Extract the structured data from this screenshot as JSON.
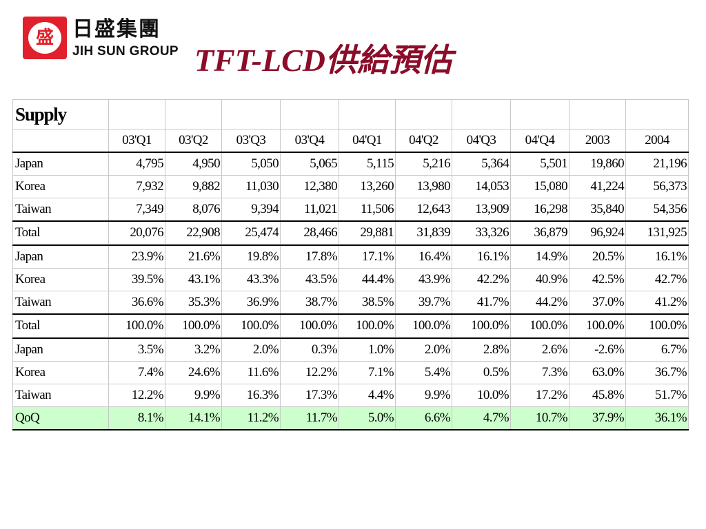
{
  "logo": {
    "glyph": "盛",
    "name_cn": "日盛集團",
    "name_en": "JIH SUN GROUP"
  },
  "title": "TFT-LCD供給預估",
  "table": {
    "caption": "Supply",
    "columns": [
      "03'Q1",
      "03'Q2",
      "03'Q3",
      "03'Q4",
      "04'Q1",
      "04'Q2",
      "04'Q3",
      "04'Q4",
      "2003",
      "2004"
    ],
    "supply_rows": [
      {
        "label": "Japan",
        "values": [
          "4,795",
          "4,950",
          "5,050",
          "5,065",
          "5,115",
          "5,216",
          "5,364",
          "5,501",
          "19,860",
          "21,196"
        ]
      },
      {
        "label": "Korea",
        "values": [
          "7,932",
          "9,882",
          "11,030",
          "12,380",
          "13,260",
          "13,980",
          "14,053",
          "15,080",
          "41,224",
          "56,373"
        ]
      },
      {
        "label": "Taiwan",
        "values": [
          "7,349",
          "8,076",
          "9,394",
          "11,021",
          "11,506",
          "12,643",
          "13,909",
          "16,298",
          "35,840",
          "54,356"
        ]
      },
      {
        "label": "Total",
        "values": [
          "20,076",
          "22,908",
          "25,474",
          "28,466",
          "29,881",
          "31,839",
          "33,326",
          "36,879",
          "96,924",
          "131,925"
        ]
      }
    ],
    "share_rows": [
      {
        "label": "Japan",
        "values": [
          "23.9%",
          "21.6%",
          "19.8%",
          "17.8%",
          "17.1%",
          "16.4%",
          "16.1%",
          "14.9%",
          "20.5%",
          "16.1%"
        ]
      },
      {
        "label": "Korea",
        "values": [
          "39.5%",
          "43.1%",
          "43.3%",
          "43.5%",
          "44.4%",
          "43.9%",
          "42.2%",
          "40.9%",
          "42.5%",
          "42.7%"
        ]
      },
      {
        "label": "Taiwan",
        "values": [
          "36.6%",
          "35.3%",
          "36.9%",
          "38.7%",
          "38.5%",
          "39.7%",
          "41.7%",
          "44.2%",
          "37.0%",
          "41.2%"
        ]
      },
      {
        "label": "Total",
        "values": [
          "100.0%",
          "100.0%",
          "100.0%",
          "100.0%",
          "100.0%",
          "100.0%",
          "100.0%",
          "100.0%",
          "100.0%",
          "100.0%"
        ]
      }
    ],
    "growth_rows": [
      {
        "label": "Japan",
        "values": [
          "3.5%",
          "3.2%",
          "2.0%",
          "0.3%",
          "1.0%",
          "2.0%",
          "2.8%",
          "2.6%",
          "-2.6%",
          "6.7%"
        ]
      },
      {
        "label": "Korea",
        "values": [
          "7.4%",
          "24.6%",
          "11.6%",
          "12.2%",
          "7.1%",
          "5.4%",
          "0.5%",
          "7.3%",
          "63.0%",
          "36.7%"
        ]
      },
      {
        "label": "Taiwan",
        "values": [
          "12.2%",
          "9.9%",
          "16.3%",
          "17.3%",
          "4.4%",
          "9.9%",
          "10.0%",
          "17.2%",
          "45.8%",
          "51.7%"
        ]
      },
      {
        "label": "QoQ",
        "values": [
          "8.1%",
          "14.1%",
          "11.2%",
          "11.7%",
          "5.0%",
          "6.6%",
          "4.7%",
          "10.7%",
          "37.9%",
          "36.1%"
        ]
      }
    ],
    "colors": {
      "title": "#8b0d2a",
      "logo_red": "#e0202a",
      "qoq_highlight": "#ccffcc"
    }
  }
}
